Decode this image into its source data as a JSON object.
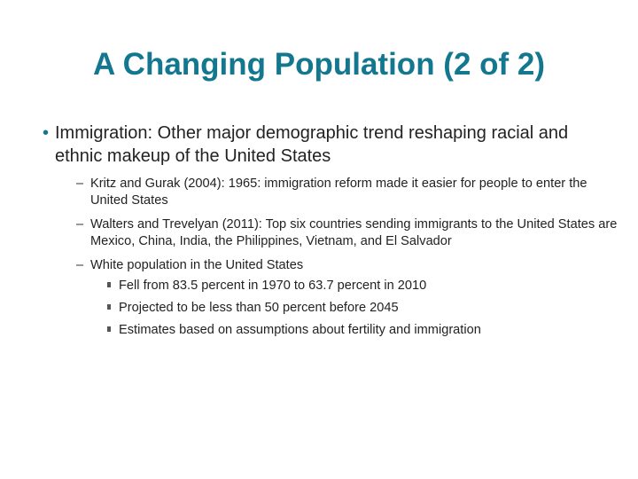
{
  "title": "A Changing Population (2 of 2)",
  "colors": {
    "title": "#13788f",
    "bullet": "#13788f",
    "text": "#222222"
  },
  "bullets": [
    {
      "marker": "•",
      "text": "Immigration: Other major demographic trend reshaping racial and ethnic makeup of the United States",
      "subitems": [
        {
          "marker": "–",
          "text": "Kritz and Gurak (2004): 1965: immigration reform made it easier for people to enter the United States"
        },
        {
          "marker": "–",
          "text": "Walters and Trevelyan (2011): Top six countries sending immigrants to the United States are Mexico, China, India, the Philippines, Vietnam, and El Salvador"
        },
        {
          "marker": "–",
          "text": "White population in the United States",
          "subitems": [
            {
              "text": "Fell from 83.5 percent in 1970 to 63.7 percent in 2010"
            },
            {
              "text": "Projected to be less than 50 percent before 2045"
            },
            {
              "text": "Estimates based on assumptions about fertility and immigration"
            }
          ]
        }
      ]
    }
  ]
}
